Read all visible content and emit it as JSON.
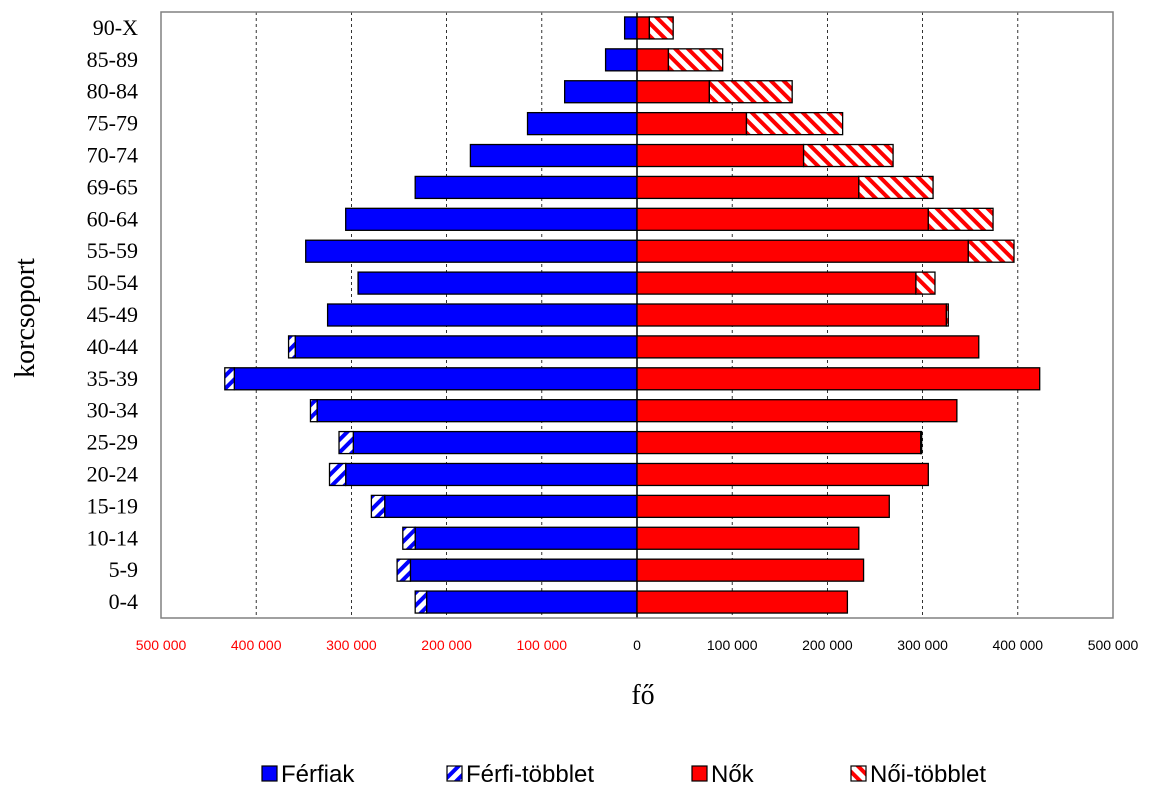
{
  "chart_data": {
    "type": "bar",
    "orientation": "horizontal",
    "layout": "population-pyramid",
    "title": "",
    "xlabel": "fő",
    "ylabel": "korcsoport",
    "xlim": [
      -500000,
      500000
    ],
    "xticks": [
      -500000,
      -400000,
      -300000,
      -200000,
      -100000,
      0,
      100000,
      200000,
      300000,
      400000,
      500000
    ],
    "xtick_labels": [
      "500 000",
      "400 000",
      "300 000",
      "200 000",
      "100 000",
      "0",
      "100 000",
      "200 000",
      "300 000",
      "400 000",
      "500 000"
    ],
    "negative_tick_color": "#ff0000",
    "positive_tick_color": "#000000",
    "grid": "vertical-dashed",
    "legend_position": "bottom",
    "categories": [
      "0-4",
      "5-9",
      "10-14",
      "15-19",
      "20-24",
      "25-29",
      "30-34",
      "35-39",
      "40-44",
      "45-49",
      "50-54",
      "55-59",
      "60-64",
      "69-65",
      "70-74",
      "75-79",
      "80-84",
      "85-89",
      "90-X"
    ],
    "series": [
      {
        "name": "Férfiak",
        "side": "left",
        "pattern": "solid",
        "color": "#0000ff",
        "values": [
          221000,
          238000,
          233000,
          265000,
          306000,
          298000,
          336000,
          423000,
          359000,
          325000,
          293000,
          348000,
          306000,
          233000,
          175000,
          115000,
          76000,
          33000,
          13000
        ]
      },
      {
        "name": "Férfi-többlet",
        "side": "left",
        "pattern": "hatch",
        "color": "#0000ff",
        "values": [
          12000,
          14000,
          13000,
          14000,
          17000,
          15000,
          7000,
          10000,
          7000,
          0,
          0,
          0,
          0,
          0,
          0,
          0,
          0,
          0,
          0
        ]
      },
      {
        "name": "Nők",
        "side": "right",
        "pattern": "solid",
        "color": "#ff0000",
        "values": [
          221000,
          238000,
          233000,
          265000,
          306000,
          298000,
          336000,
          423000,
          359000,
          325000,
          293000,
          348000,
          306000,
          233000,
          175000,
          115000,
          76000,
          33000,
          13000
        ]
      },
      {
        "name": "Női-többlet",
        "side": "right",
        "pattern": "hatch",
        "color": "#ff0000",
        "values": [
          0,
          0,
          0,
          0,
          0,
          1000,
          0,
          0,
          0,
          2000,
          20000,
          48000,
          68000,
          78000,
          94000,
          101000,
          87000,
          57000,
          25000
        ]
      }
    ]
  }
}
